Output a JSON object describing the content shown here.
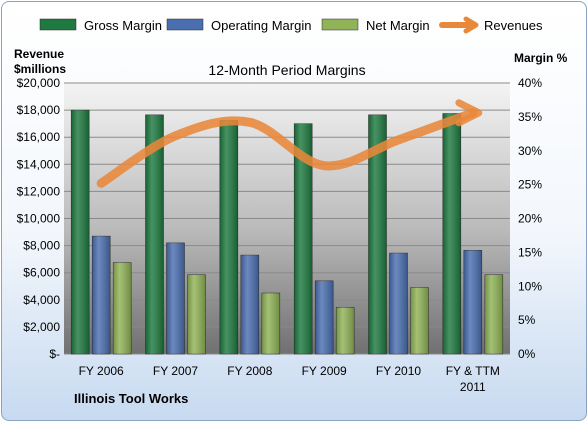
{
  "chart_data": {
    "type": "bar",
    "title": "12-Month Period Margins",
    "categories": [
      "FY 2006",
      "FY 2007",
      "FY 2008",
      "FY 2009",
      "FY 2010",
      "FY & TTM 2011"
    ],
    "series": [
      {
        "name": "Gross Margin",
        "axis": "right",
        "unit": "%",
        "values": [
          36.0,
          35.3,
          34.5,
          34.0,
          35.3,
          35.5
        ],
        "color": "#1e7a40"
      },
      {
        "name": "Operating Margin",
        "axis": "right",
        "unit": "%",
        "values": [
          17.4,
          16.4,
          14.6,
          10.8,
          14.9,
          15.3
        ],
        "color": "#4a6fb0"
      },
      {
        "name": "Net Margin",
        "axis": "right",
        "unit": "%",
        "values": [
          13.5,
          11.7,
          9.0,
          6.9,
          9.8,
          11.7
        ],
        "color": "#8fb356"
      },
      {
        "name": "Revenues",
        "type": "line",
        "axis": "left",
        "unit": "$millions",
        "values": [
          12600,
          16100,
          17100,
          13900,
          15800,
          17800
        ],
        "color": "#e8883a"
      }
    ],
    "y_left": {
      "label_line1": "Revenue",
      "label_line2": "$millions",
      "min": 0,
      "max": 20000,
      "step": 2000,
      "ticks": [
        "$-",
        "$2,000",
        "$4,000",
        "$6,000",
        "$8,000",
        "$10,000",
        "$12,000",
        "$14,000",
        "$16,000",
        "$18,000",
        "$20,000"
      ]
    },
    "y_right": {
      "label": "Margin %",
      "min": 0,
      "max": 40,
      "step": 5,
      "ticks": [
        "0%",
        "5%",
        "10%",
        "15%",
        "20%",
        "25%",
        "30%",
        "35%",
        "40%"
      ]
    },
    "legend_position": "top",
    "grid": true,
    "company": "Illinois Tool Works"
  }
}
